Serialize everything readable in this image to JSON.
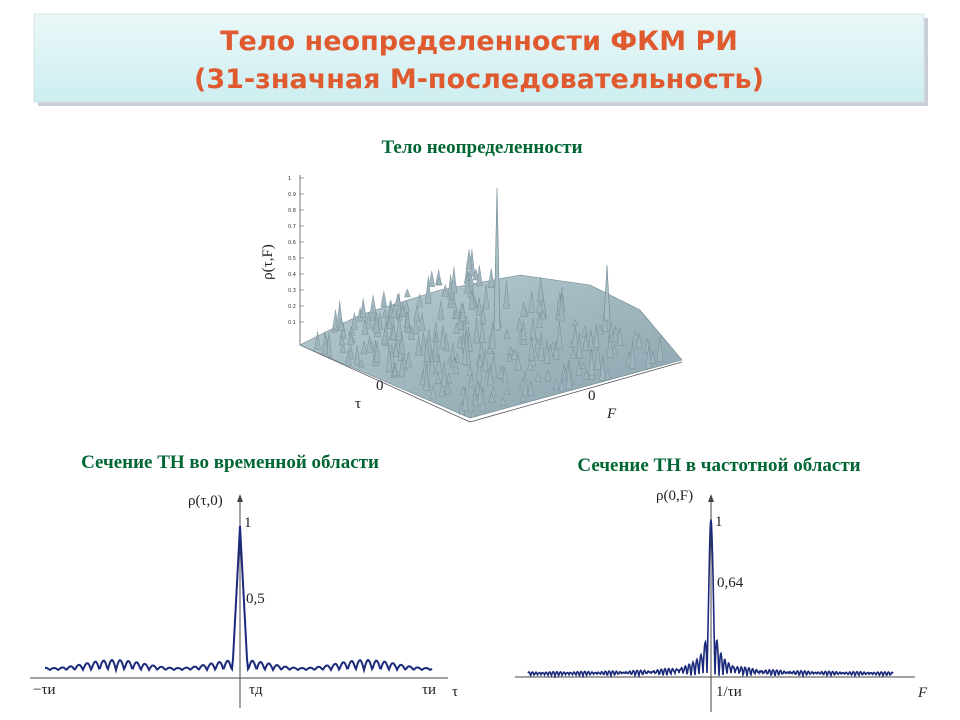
{
  "header": {
    "title_line1": "Тело неопределенности ФКМ РИ",
    "title_line2": "(31-значная М-последовательность)"
  },
  "surface_plot": {
    "title": "Тело неопределенности",
    "z_label": "ρ(τ,F)",
    "z_ticks": [
      "1",
      "0.9",
      "0.8",
      "0.7",
      "0.6",
      "0.5",
      "0.4",
      "0.3",
      "0.2",
      "0.1"
    ],
    "x_label": "τ",
    "x_zero": "0",
    "y_label": "F",
    "y_zero": "0"
  },
  "time_section": {
    "title": "Сечение ТН во временной области",
    "y_label": "ρ(τ,0)",
    "peak_label": "1",
    "half_label": "0,5",
    "x_left": "−τи",
    "x_delta": "τд",
    "x_right": "τи",
    "x_axis": "τ"
  },
  "freq_section": {
    "title": "Сечение ТН в частотной области",
    "y_label": "ρ(0,F)",
    "peak_label": "1",
    "level_label": "0,64",
    "x_tick": "1/τи",
    "x_axis": "F"
  }
}
